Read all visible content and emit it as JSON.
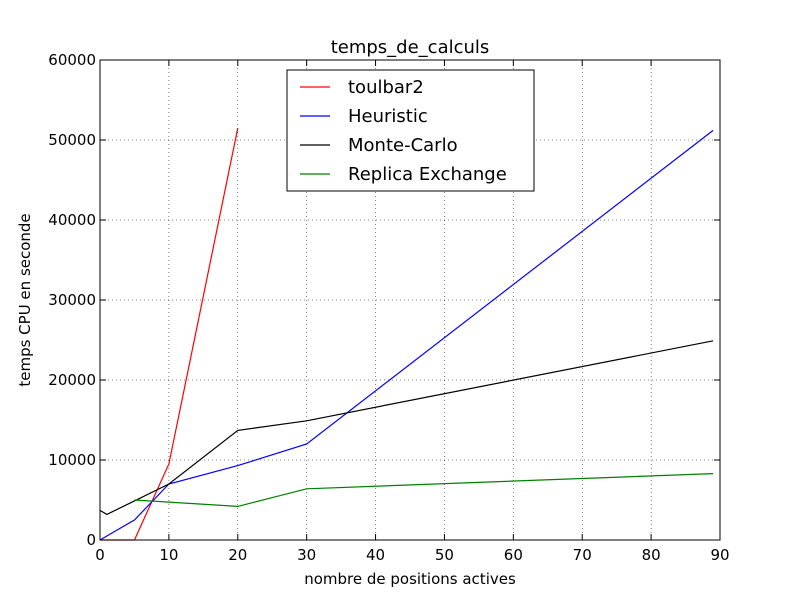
{
  "chart_data": {
    "type": "line",
    "title": "temps_de_calculs",
    "xlabel": "nombre de positions actives",
    "ylabel": "temps CPU en seconde",
    "xlim": [
      0,
      90
    ],
    "ylim": [
      0,
      60000
    ],
    "xticks": [
      0,
      10,
      20,
      30,
      40,
      50,
      60,
      70,
      80,
      90
    ],
    "yticks": [
      0,
      10000,
      20000,
      30000,
      40000,
      50000,
      60000
    ],
    "grid": true,
    "legend_position": "top-center",
    "series": [
      {
        "name": "toulbar2",
        "color": "#ff0000",
        "x": [
          0,
          5,
          10,
          20
        ],
        "y": [
          0,
          0,
          9500,
          51500
        ]
      },
      {
        "name": "Heuristic",
        "color": "#0000ff",
        "x": [
          0,
          5,
          10,
          20,
          30,
          89
        ],
        "y": [
          0,
          2500,
          7000,
          9300,
          12000,
          51200
        ]
      },
      {
        "name": "Monte-Carlo",
        "color": "#000000",
        "x": [
          0,
          1,
          10,
          20,
          30,
          89
        ],
        "y": [
          3700,
          3200,
          7000,
          13700,
          14900,
          24900
        ]
      },
      {
        "name": "Replica Exchange",
        "color": "#008000",
        "x": [
          5,
          20,
          30,
          89
        ],
        "y": [
          5000,
          4200,
          6400,
          8300
        ]
      }
    ]
  }
}
